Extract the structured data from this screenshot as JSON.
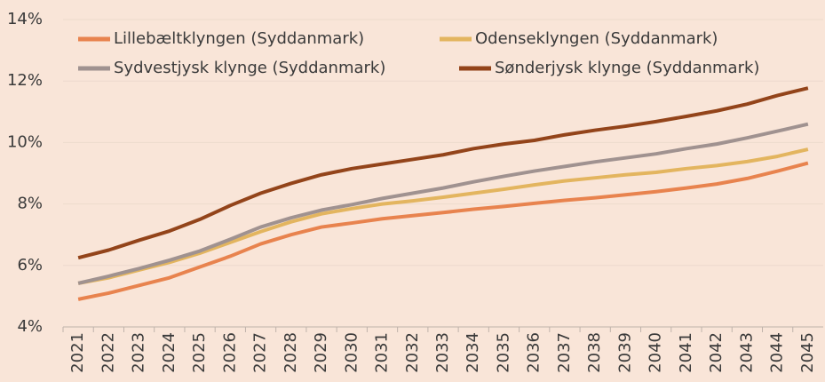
{
  "chart_data": {
    "type": "line",
    "categories": [
      "2021",
      "2022",
      "2023",
      "2024",
      "2025",
      "2026",
      "2027",
      "2028",
      "2029",
      "2030",
      "2031",
      "2032",
      "2033",
      "2034",
      "2035",
      "2036",
      "2037",
      "2038",
      "2039",
      "2040",
      "2041",
      "2042",
      "2043",
      "2044",
      "2045"
    ],
    "series": [
      {
        "name": "Lillebæltklyngen (Syddanmark)",
        "color": "#e8834e",
        "values": [
          4.9,
          5.1,
          5.35,
          5.6,
          5.95,
          6.3,
          6.7,
          7.0,
          7.25,
          7.38,
          7.52,
          7.62,
          7.72,
          7.83,
          7.92,
          8.02,
          8.12,
          8.2,
          8.3,
          8.4,
          8.52,
          8.65,
          8.83,
          9.07,
          9.33
        ]
      },
      {
        "name": "Odenseklyngen (Syddanmark)",
        "color": "#e3b55f",
        "values": [
          5.42,
          5.6,
          5.85,
          6.1,
          6.4,
          6.75,
          7.1,
          7.42,
          7.68,
          7.85,
          8.0,
          8.1,
          8.22,
          8.35,
          8.48,
          8.62,
          8.75,
          8.85,
          8.95,
          9.03,
          9.15,
          9.25,
          9.38,
          9.55,
          9.78
        ]
      },
      {
        "name": "Sydvestjysk klynge (Syddanmark)",
        "color": "#a09290",
        "values": [
          5.42,
          5.65,
          5.9,
          6.17,
          6.47,
          6.85,
          7.25,
          7.55,
          7.8,
          7.98,
          8.18,
          8.35,
          8.52,
          8.72,
          8.9,
          9.07,
          9.22,
          9.37,
          9.5,
          9.63,
          9.8,
          9.95,
          10.15,
          10.37,
          10.6
        ]
      },
      {
        "name": "Sønderjysk klynge (Syddanmark)",
        "color": "#93441a",
        "values": [
          6.25,
          6.5,
          6.82,
          7.12,
          7.5,
          7.95,
          8.35,
          8.67,
          8.95,
          9.15,
          9.3,
          9.45,
          9.6,
          9.8,
          9.95,
          10.07,
          10.25,
          10.4,
          10.53,
          10.68,
          10.85,
          11.03,
          11.25,
          11.53,
          11.77
        ]
      }
    ],
    "ylim": [
      4,
      14
    ],
    "yticks": [
      {
        "value": 4,
        "label": "4%"
      },
      {
        "value": 6,
        "label": "6%"
      },
      {
        "value": 8,
        "label": "8%"
      },
      {
        "value": 10,
        "label": "10%"
      },
      {
        "value": 12,
        "label": "12%"
      },
      {
        "value": 14,
        "label": "14%"
      }
    ],
    "grid": true
  }
}
